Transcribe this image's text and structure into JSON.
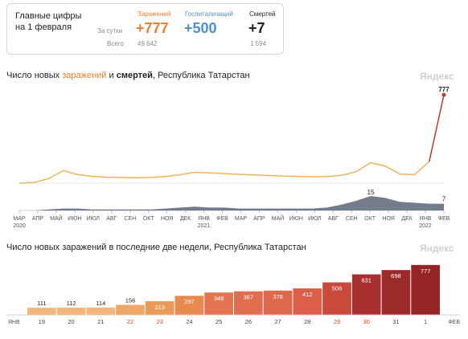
{
  "card": {
    "title": "Главные цифры на 1 февраля",
    "per_day_label": "За сутки",
    "total_label": "Всего",
    "cases": {
      "head": "Заражений",
      "value": "+777",
      "total": "49 642",
      "color": "#f07d2c"
    },
    "hosp": {
      "head": "Госпитализаций",
      "value": "+500",
      "color": "#4e8fd1"
    },
    "deaths": {
      "head": "Смертей",
      "value": "+7",
      "total": "1 594",
      "color": "#222222"
    }
  },
  "chart1": {
    "title_prefix": "Число новых ",
    "title_cases": "заражений",
    "title_mid": " и ",
    "title_deaths": "смертей",
    "title_suffix": ", Республика Татарстан",
    "watermark": "Яндекс"
  },
  "chart2": {
    "title": "Число новых заражений в последние две недели, Республика Татарстан",
    "watermark": "Яндекс"
  },
  "chart_data": [
    {
      "type": "line",
      "title": "Число новых заражений и смертей, Республика Татарстан",
      "series": [
        {
          "name": "заражений",
          "color": "#f2b25c",
          "values": [
            0,
            5,
            40,
            110,
            75,
            60,
            52,
            50,
            48,
            50,
            58,
            75,
            95,
            90,
            85,
            78,
            72,
            68,
            62,
            60,
            56,
            58,
            70,
            100,
            180,
            150,
            80,
            75,
            190,
            777
          ]
        },
        {
          "name": "смертей",
          "color": "#5b6478",
          "values": [
            0,
            0,
            1,
            2,
            2,
            1,
            1,
            1,
            1,
            1,
            2,
            3,
            4,
            3,
            3,
            2,
            2,
            2,
            2,
            2,
            2,
            3,
            6,
            10,
            15,
            13,
            9,
            8,
            7,
            7
          ]
        }
      ],
      "annotations": {
        "last_cases": "777",
        "peak_deaths": "15",
        "last_deaths": "7"
      },
      "x_ticks": [
        {
          "label": "МАР",
          "year": "2020"
        },
        {
          "label": "АПР"
        },
        {
          "label": "МАЙ"
        },
        {
          "label": "ИЮН"
        },
        {
          "label": "ИЮЛ"
        },
        {
          "label": "АВГ"
        },
        {
          "label": "СЕН"
        },
        {
          "label": "ОКТ"
        },
        {
          "label": "НОЯ"
        },
        {
          "label": "ДЕК"
        },
        {
          "label": "ЯНВ",
          "year": "2021"
        },
        {
          "label": "ФЕВ"
        },
        {
          "label": "МАР"
        },
        {
          "label": "АПР"
        },
        {
          "label": "МАЙ"
        },
        {
          "label": "ИЮН"
        },
        {
          "label": "ИЮЛ"
        },
        {
          "label": "АВГ"
        },
        {
          "label": "СЕН"
        },
        {
          "label": "ОКТ"
        },
        {
          "label": "НОЯ"
        },
        {
          "label": "ДЕК"
        },
        {
          "label": "ЯНВ",
          "year": "2022"
        },
        {
          "label": "ФЕВ"
        }
      ]
    },
    {
      "type": "bar",
      "title": "Число новых заражений в последние две недели, Республика Татарстан",
      "categories": [
        "19",
        "20",
        "21",
        "22",
        "23",
        "24",
        "25",
        "26",
        "27",
        "28",
        "29",
        "30",
        "31",
        "1"
      ],
      "values": [
        111,
        112,
        114,
        156,
        213,
        297,
        348,
        367,
        378,
        412,
        506,
        631,
        698,
        777
      ],
      "weekend": [
        false,
        false,
        false,
        true,
        true,
        false,
        false,
        false,
        false,
        false,
        true,
        true,
        false,
        false
      ],
      "colors": [
        "#f3b77a",
        "#f3b77a",
        "#f3b77a",
        "#f0a765",
        "#ec9a58",
        "#e78a50",
        "#e57550",
        "#e06e4e",
        "#de684c",
        "#dc5f4a",
        "#c94a3a",
        "#a83030",
        "#9c2a2a",
        "#952424"
      ],
      "start_label": "ЯНВ",
      "end_label": "ФЕВ",
      "ylim": [
        0,
        800
      ]
    }
  ]
}
